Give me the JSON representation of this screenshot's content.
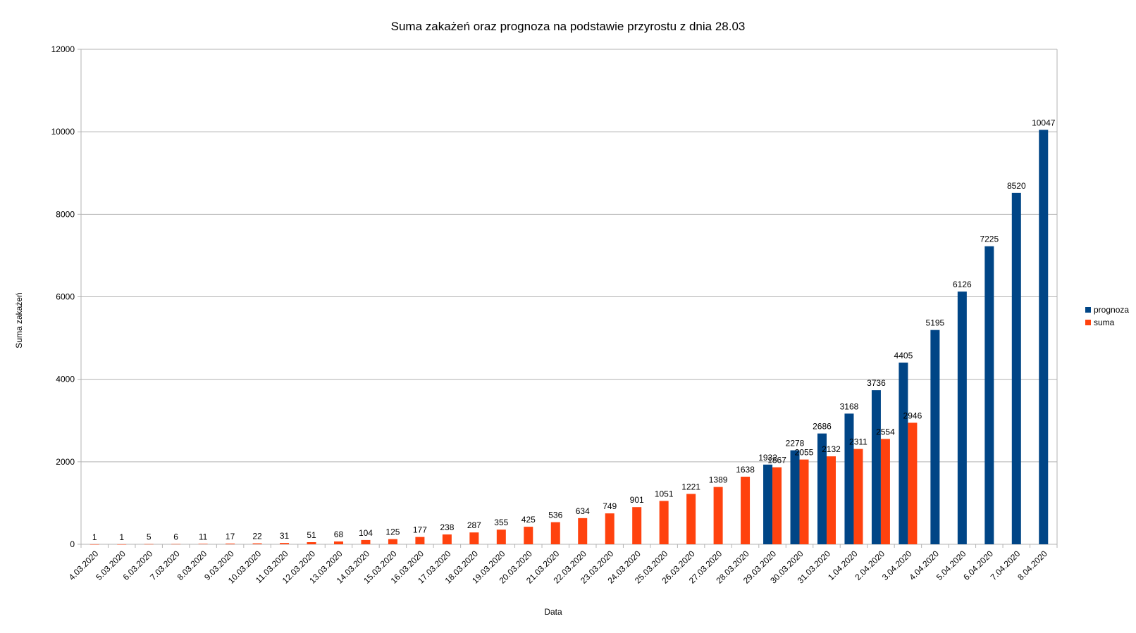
{
  "chart_data": {
    "type": "bar",
    "title": "Suma zakażeń oraz prognoza na podstawie przyrostu z dnia 28.03",
    "xlabel": "Data",
    "ylabel": "Suma zakażeń",
    "ylim": [
      0,
      12000
    ],
    "yticks": [
      0,
      2000,
      4000,
      6000,
      8000,
      10000,
      12000
    ],
    "grid": true,
    "legend_position": "right",
    "categories": [
      "4.03.2020",
      "5.03.2020",
      "6.03.2020",
      "7.03.2020",
      "8.03.2020",
      "9.03.2020",
      "10.03.2020",
      "11.03.2020",
      "12.03.2020",
      "13.03.2020",
      "14.03.2020",
      "15.03.2020",
      "16.03.2020",
      "17.03.2020",
      "18.03.2020",
      "19.03.2020",
      "20.03.2020",
      "21.03.2020",
      "22.03.2020",
      "23.03.2020",
      "24.03.2020",
      "25.03.2020",
      "26.03.2020",
      "27.03.2020",
      "28.03.2020",
      "29.03.2020",
      "30.03.2020",
      "31.03.2020",
      "1.04.2020",
      "2.04.2020",
      "3.04.2020",
      "4.04.2020",
      "5.04.2020",
      "6.04.2020",
      "7.04.2020",
      "8.04.2020"
    ],
    "series": [
      {
        "name": "prognoza",
        "color": "#004586",
        "values": [
          null,
          null,
          null,
          null,
          null,
          null,
          null,
          null,
          null,
          null,
          null,
          null,
          null,
          null,
          null,
          null,
          null,
          null,
          null,
          null,
          null,
          null,
          null,
          null,
          null,
          1932,
          2278,
          2686,
          3168,
          3736,
          4405,
          5195,
          6126,
          7225,
          8520,
          10047
        ]
      },
      {
        "name": "suma",
        "color": "#ff420e",
        "values": [
          1,
          1,
          5,
          6,
          11,
          17,
          22,
          31,
          51,
          68,
          104,
          125,
          177,
          238,
          287,
          355,
          425,
          536,
          634,
          749,
          901,
          1051,
          1221,
          1389,
          1638,
          1867,
          2055,
          2132,
          2311,
          2554,
          2946,
          null,
          null,
          null,
          null,
          null
        ]
      }
    ]
  }
}
